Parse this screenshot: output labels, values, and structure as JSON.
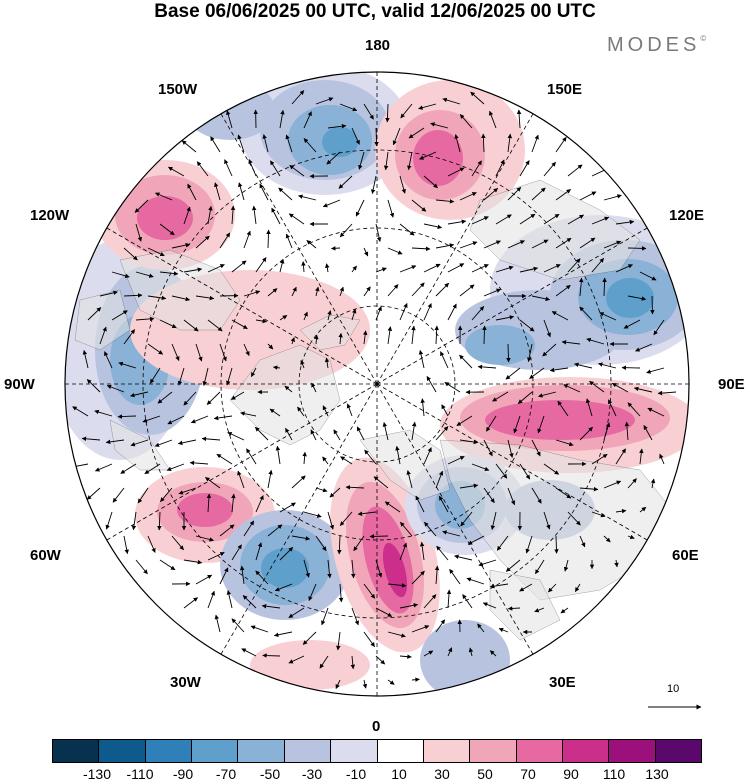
{
  "title": "Base 06/06/2025 00 UTC, valid 12/06/2025 00 UTC",
  "brand": "MODES",
  "brand_mark": "©",
  "longitude_labels": {
    "top": "180",
    "bottom": "0",
    "left": "90W",
    "right": "90E",
    "upper_left": "150W",
    "left_upper": "120W",
    "left_lower": "60W",
    "lower_left": "30W",
    "upper_right": "150E",
    "right_upper": "120E",
    "right_lower": "60E",
    "lower_right": "30E"
  },
  "reference_vector_label": "10",
  "colorbar": {
    "colors": [
      "#08304f",
      "#0f5a8c",
      "#2f7fb8",
      "#5f9fcc",
      "#8ab1d6",
      "#b8c3e0",
      "#dcdcef",
      "#ffffff",
      "#f8d0d4",
      "#f0a6b8",
      "#e66aa1",
      "#cc2e8c",
      "#9b107a",
      "#5a086b"
    ],
    "tick_labels": [
      "-130",
      "-110",
      "-90",
      "-70",
      "-50",
      "-30",
      "-10",
      "10",
      "30",
      "50",
      "70",
      "90",
      "110",
      "130"
    ]
  },
  "map_colors": {
    "land": "#e2e2e2",
    "neg1": "#dcdcef",
    "neg2": "#b8c3e0",
    "neg3": "#8ab1d6",
    "neg4": "#5f9fcc",
    "pos1": "#f8d0d4",
    "pos2": "#f0a6b8",
    "pos3": "#e66aa1",
    "pos4": "#cc2e8c"
  }
}
